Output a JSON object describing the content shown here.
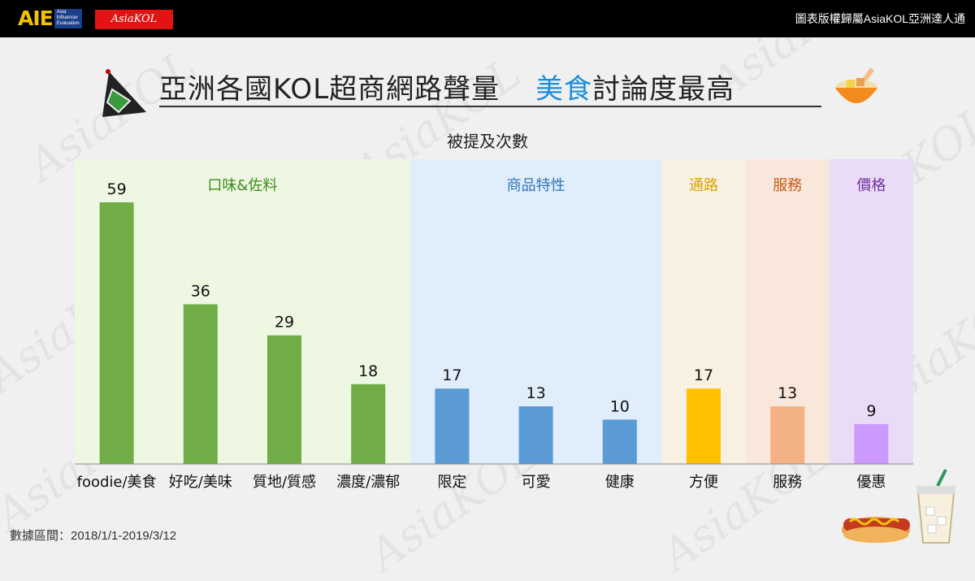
{
  "header": {
    "logo_text": "AIE",
    "logo_sub": [
      "Asia",
      "Influencer",
      "Evaluation"
    ],
    "signature_logo": "AsiaKOL",
    "copyright": "圖表版權歸屬AsiaKOL亞洲達人通"
  },
  "title": {
    "part1": "亞洲各國KOL超商網路聲量",
    "highlight": "美食",
    "part2": "討論度最高"
  },
  "subtitle": "被提及次數",
  "footer": "數據區間：2018/1/1-2019/3/12",
  "watermark": "AsiaKOL",
  "icons": [
    "rice-ball-icon",
    "noodle-bowl-icon",
    "hot-dog-icon",
    "iced-drink-icon"
  ],
  "chart_data": {
    "type": "bar",
    "title": "被提及次數",
    "ylim": [
      0,
      59
    ],
    "groups": [
      {
        "name": "口味&佐料",
        "bg": "#eef7e2",
        "label_color": "#3d8c1f",
        "bar_color": "#70ad47",
        "categories": [
          "foodie/美食",
          "好吃/美味",
          "質地/質感",
          "濃度/濃郁"
        ],
        "values": [
          59,
          36,
          29,
          18
        ]
      },
      {
        "name": "商品特性",
        "bg": "#e0edfa",
        "label_color": "#2e75b6",
        "bar_color": "#5b9bd5",
        "categories": [
          "限定",
          "可愛",
          "健康"
        ],
        "values": [
          17,
          13,
          10
        ]
      },
      {
        "name": "通路",
        "bg": "#f8f1e2",
        "label_color": "#d9a400",
        "bar_color": "#ffc000",
        "categories": [
          "方便"
        ],
        "values": [
          17
        ]
      },
      {
        "name": "服務",
        "bg": "#f9e7dc",
        "label_color": "#c55a11",
        "bar_color": "#f4b183",
        "categories": [
          "服務"
        ],
        "values": [
          13
        ]
      },
      {
        "name": "價格",
        "bg": "#eadcf6",
        "label_color": "#7030a0",
        "bar_color": "#cc99ff",
        "categories": [
          "優惠"
        ],
        "values": [
          9
        ]
      }
    ]
  }
}
